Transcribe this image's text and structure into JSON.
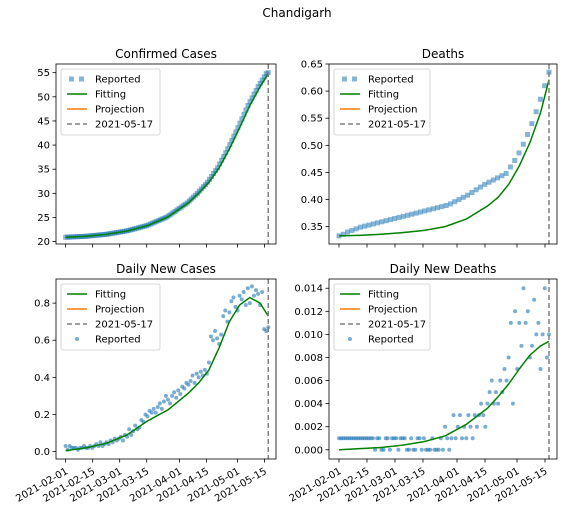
{
  "figure": {
    "title": "Chandigarh"
  },
  "colors": {
    "reported": "#1f77b4",
    "fitting": "#008000",
    "projection": "#ff7f0e",
    "vline": "#808080"
  },
  "chart_data": [
    {
      "id": "confirmed",
      "type": "line",
      "title": "Confirmed Cases",
      "reported_style": "square",
      "legend": [
        "Reported",
        "Fitting",
        "Projection",
        "2021-05-17"
      ],
      "legend_position": "upper-left",
      "x_start": "2021-02-01",
      "x_end": "2021-05-17",
      "xlim": [
        "2021-01-27",
        "2021-05-21"
      ],
      "ylim": [
        19.5,
        56.8
      ],
      "yticks": [
        20,
        25,
        30,
        35,
        40,
        45,
        50,
        55
      ],
      "ytick_labels": [
        "20",
        "25",
        "30",
        "35",
        "40",
        "45",
        "50",
        "55"
      ],
      "show_x_labels": false,
      "vline": "2021-05-17",
      "fit_knots": [
        [
          0,
          20.9
        ],
        [
          10,
          21.1
        ],
        [
          20,
          21.5
        ],
        [
          30,
          22.2
        ],
        [
          40,
          23.3
        ],
        [
          50,
          25.1
        ],
        [
          60,
          28.0
        ],
        [
          65,
          30.0
        ],
        [
          70,
          32.3
        ],
        [
          75,
          35.3
        ],
        [
          80,
          39.2
        ],
        [
          85,
          43.6
        ],
        [
          90,
          48.2
        ],
        [
          95,
          52.1
        ],
        [
          99,
          54.8
        ]
      ],
      "reported_values": [
        20.9,
        20.92,
        20.94,
        20.96,
        20.98,
        21.0,
        21.02,
        21.04,
        21.06,
        21.08,
        21.1,
        21.14,
        21.18,
        21.22,
        21.26,
        21.3,
        21.34,
        21.38,
        21.42,
        21.46,
        21.5,
        21.57,
        21.64,
        21.71,
        21.78,
        21.85,
        21.92,
        21.99,
        22.06,
        22.13,
        22.2,
        22.31,
        22.42,
        22.53,
        22.64,
        22.75,
        22.86,
        22.97,
        23.08,
        23.19,
        23.3,
        23.48,
        23.66,
        23.84,
        24.02,
        24.2,
        24.38,
        24.56,
        24.74,
        24.92,
        25.1,
        25.39,
        25.68,
        25.97,
        26.26,
        26.55,
        26.84,
        27.13,
        27.42,
        27.71,
        28.0,
        28.4,
        28.8,
        29.2,
        29.6,
        30.0,
        30.46,
        30.92,
        31.38,
        31.84,
        32.3,
        32.9,
        33.5,
        34.1,
        34.7,
        35.3,
        36.08,
        36.86,
        37.64,
        38.42,
        39.2,
        40.08,
        40.96,
        41.84,
        42.72,
        43.6,
        44.52,
        45.44,
        46.36,
        47.28,
        48.2,
        48.98,
        49.76,
        50.54,
        51.32,
        52.1,
        52.78,
        53.45,
        54.13,
        54.8,
        55.0
      ]
    },
    {
      "id": "deaths",
      "type": "line",
      "title": "Deaths",
      "reported_style": "square",
      "legend": [
        "Reported",
        "Fitting",
        "Projection",
        "2021-05-17"
      ],
      "legend_position": "upper-left",
      "x_start": "2021-02-01",
      "x_end": "2021-05-17",
      "xlim": [
        "2021-01-27",
        "2021-05-21"
      ],
      "ylim": [
        0.318,
        0.65
      ],
      "yticks": [
        0.35,
        0.4,
        0.45,
        0.5,
        0.55,
        0.6,
        0.65
      ],
      "ytick_labels": [
        "0.35",
        "0.40",
        "0.45",
        "0.50",
        "0.55",
        "0.60",
        "0.65"
      ],
      "show_x_labels": false,
      "vline": "2021-05-17",
      "fit_knots": [
        [
          0,
          0.333
        ],
        [
          10,
          0.334
        ],
        [
          20,
          0.336
        ],
        [
          30,
          0.339
        ],
        [
          40,
          0.343
        ],
        [
          50,
          0.35
        ],
        [
          60,
          0.364
        ],
        [
          70,
          0.388
        ],
        [
          75,
          0.404
        ],
        [
          80,
          0.428
        ],
        [
          85,
          0.462
        ],
        [
          90,
          0.505
        ],
        [
          95,
          0.56
        ],
        [
          99,
          0.621
        ]
      ],
      "reported_values": [
        0.333,
        0.336,
        0.34,
        0.343,
        0.346,
        0.349,
        0.351,
        0.353,
        0.355,
        0.357,
        0.359,
        0.361,
        0.363,
        0.365,
        0.367,
        0.369,
        0.371,
        0.373,
        0.375,
        0.377,
        0.379,
        0.381,
        0.383,
        0.385,
        0.387,
        0.389,
        0.392,
        0.396,
        0.4,
        0.404,
        0.408,
        0.413,
        0.418,
        0.423,
        0.428,
        0.432,
        0.436,
        0.44,
        0.444,
        0.448,
        0.46,
        0.472,
        0.486,
        0.502,
        0.52,
        0.54,
        0.562,
        0.585,
        0.61,
        0.635
      ]
    },
    {
      "id": "daily-cases",
      "type": "scatter",
      "title": "Daily New Cases",
      "reported_style": "dot",
      "legend": [
        "Fitting",
        "Projection",
        "2021-05-17",
        "Reported"
      ],
      "legend_position": "upper-left",
      "x_start": "2021-02-01",
      "x_end": "2021-05-17",
      "xlim": [
        "2021-01-27",
        "2021-05-21"
      ],
      "ylim": [
        -0.04,
        0.93
      ],
      "yticks": [
        0.0,
        0.2,
        0.4,
        0.6,
        0.8
      ],
      "ytick_labels": [
        "0.0",
        "0.2",
        "0.4",
        "0.6",
        "0.8"
      ],
      "show_x_labels": true,
      "xticks": [
        "2021-02-01",
        "2021-02-15",
        "2021-03-01",
        "2021-03-15",
        "2021-04-01",
        "2021-04-15",
        "2021-05-01",
        "2021-05-15"
      ],
      "vline": "2021-05-17",
      "fit_knots": [
        [
          0,
          0.005
        ],
        [
          10,
          0.02
        ],
        [
          20,
          0.045
        ],
        [
          30,
          0.09
        ],
        [
          40,
          0.165
        ],
        [
          50,
          0.225
        ],
        [
          60,
          0.315
        ],
        [
          65,
          0.37
        ],
        [
          70,
          0.44
        ],
        [
          75,
          0.56
        ],
        [
          80,
          0.7
        ],
        [
          85,
          0.79
        ],
        [
          90,
          0.83
        ],
        [
          95,
          0.8
        ],
        [
          99,
          0.73
        ]
      ],
      "reported_values": [
        0.03,
        0.01,
        0.03,
        0.02,
        0.02,
        0.02,
        0.01,
        0.02,
        0.02,
        0.03,
        0.02,
        0.02,
        0.03,
        0.02,
        0.03,
        0.04,
        0.03,
        0.05,
        0.03,
        0.04,
        0.05,
        0.04,
        0.06,
        0.05,
        0.07,
        0.06,
        0.07,
        0.08,
        0.06,
        0.09,
        0.08,
        0.12,
        0.09,
        0.11,
        0.14,
        0.12,
        0.13,
        0.17,
        0.16,
        0.2,
        0.19,
        0.22,
        0.21,
        0.23,
        0.21,
        0.24,
        0.26,
        0.23,
        0.27,
        0.3,
        0.28,
        0.26,
        0.3,
        0.32,
        0.29,
        0.33,
        0.31,
        0.35,
        0.34,
        0.37,
        0.36,
        0.38,
        0.41,
        0.37,
        0.42,
        0.4,
        0.43,
        0.41,
        0.44,
        0.42,
        0.48,
        0.62,
        0.6,
        0.65,
        0.61,
        0.58,
        0.63,
        0.73,
        0.76,
        0.7,
        0.75,
        0.81,
        0.83,
        0.78,
        0.76,
        0.84,
        0.82,
        0.86,
        0.79,
        0.88,
        0.8,
        0.89,
        0.84,
        0.87,
        0.85,
        0.79,
        0.86,
        0.66,
        0.65,
        0.67
      ]
    },
    {
      "id": "daily-deaths",
      "type": "scatter",
      "title": "Daily New Deaths",
      "reported_style": "dot",
      "legend": [
        "Fitting",
        "Projection",
        "2021-05-17",
        "Reported"
      ],
      "legend_position": "upper-left",
      "x_start": "2021-02-01",
      "x_end": "2021-05-17",
      "xlim": [
        "2021-01-27",
        "2021-05-21"
      ],
      "ylim": [
        -0.0008,
        0.0148
      ],
      "yticks": [
        0.0,
        0.002,
        0.004,
        0.006,
        0.008,
        0.01,
        0.012,
        0.014
      ],
      "ytick_labels": [
        "0.000",
        "0.002",
        "0.004",
        "0.006",
        "0.008",
        "0.010",
        "0.012",
        "0.014"
      ],
      "show_x_labels": true,
      "xticks": [
        "2021-02-01",
        "2021-02-15",
        "2021-03-01",
        "2021-03-15",
        "2021-04-01",
        "2021-04-15",
        "2021-05-01",
        "2021-05-15"
      ],
      "vline": "2021-05-17",
      "fit_knots": [
        [
          0,
          0.0
        ],
        [
          10,
          0.0001
        ],
        [
          20,
          0.0002
        ],
        [
          30,
          0.0004
        ],
        [
          40,
          0.0007
        ],
        [
          50,
          0.0012
        ],
        [
          60,
          0.0022
        ],
        [
          70,
          0.0036
        ],
        [
          75,
          0.0046
        ],
        [
          80,
          0.0057
        ],
        [
          85,
          0.007
        ],
        [
          90,
          0.0082
        ],
        [
          95,
          0.009
        ],
        [
          99,
          0.0094
        ]
      ],
      "reported_values": [
        0.001,
        0.001,
        0.001,
        0.001,
        0.001,
        0.001,
        0.001,
        0.001,
        0.001,
        0.001,
        0.001,
        0.001,
        0.001,
        0.001,
        0.001,
        0.001,
        0.001,
        0.0,
        0.001,
        0.001,
        0.0,
        0.0,
        0.001,
        0.001,
        0.0,
        0.001,
        0.001,
        0.001,
        0.0,
        0.001,
        0.001,
        0.001,
        0.0,
        0.0,
        0.001,
        0.0,
        0.0,
        0.001,
        0.001,
        0.0,
        0.001,
        0.0,
        0.0,
        0.0,
        0.001,
        0.0,
        0.0,
        0.0,
        0.001,
        0.0,
        0.002,
        0.001,
        0.0,
        0.001,
        0.003,
        0.001,
        0.002,
        0.003,
        0.001,
        0.002,
        0.001,
        0.003,
        0.002,
        0.001,
        0.003,
        0.002,
        0.003,
        0.004,
        0.003,
        0.002,
        0.004,
        0.005,
        0.006,
        0.004,
        0.005,
        0.004,
        0.006,
        0.005,
        0.007,
        0.006,
        0.008,
        0.011,
        0.004,
        0.012,
        0.007,
        0.011,
        0.009,
        0.014,
        0.011,
        0.012,
        0.008,
        0.009,
        0.013,
        0.01,
        0.011,
        0.007,
        0.01,
        0.014,
        0.008,
        0.01
      ]
    }
  ]
}
